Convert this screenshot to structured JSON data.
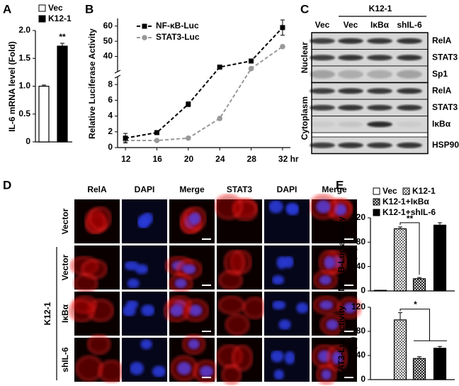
{
  "panel_labels": [
    "A",
    "B",
    "C",
    "D",
    "E"
  ],
  "chart_data": [
    {
      "type": "bar",
      "y_label": "IL-6 mRNA level (Fold)",
      "categories": [
        null
      ],
      "series": [
        {
          "name": "Vec",
          "color": "#ffffff",
          "values": [
            1.0
          ],
          "errors": [
            0.02
          ]
        },
        {
          "name": "K12-1",
          "color": "#000000",
          "values": [
            1.72
          ],
          "errors": [
            0.05
          ]
        }
      ],
      "annotations": [
        "**"
      ],
      "ylim": [
        0,
        2
      ],
      "yticks": [
        0,
        0.5,
        {
          "value": 1,
          "label": "1.0"
        },
        1.5,
        {
          "value": 2,
          "label": "2.0"
        }
      ]
    },
    {
      "type": "line",
      "y_label": "Relative Luciferase Activity",
      "x": [
        12,
        16,
        20,
        24,
        28,
        32
      ],
      "series": [
        {
          "name": "NF-κB-Luc",
          "color": "#000000",
          "marker": "square",
          "values": [
            1.2,
            1.9,
            5.5,
            33,
            37,
            59
          ],
          "errors": [
            0.6,
            0.2,
            0.3,
            0.3,
            0.3,
            5
          ]
        },
        {
          "name": "STAT3-Luc",
          "color": "#999999",
          "marker": "circle",
          "values": [
            0.9,
            0.9,
            1.2,
            3.7,
            32,
            46.5
          ]
        }
      ],
      "line_style": "dashed",
      "xlim": [
        11,
        33
      ],
      "xticks": [
        12,
        16,
        20,
        24,
        28,
        {
          "value": 32,
          "label": "32 hr"
        }
      ],
      "ylim": [
        0,
        65
      ],
      "ybreak": [
        9,
        30
      ],
      "yticks": [
        0,
        2,
        4,
        6,
        8,
        40,
        50,
        60
      ]
    },
    {
      "type": "bar",
      "y_label": [
        "NF-κB-Luc activity",
        "(%)"
      ],
      "categories": [
        null,
        null,
        null,
        null
      ],
      "series_names": [
        "Vec",
        "K12-1",
        "K12-1+IκBα",
        "K12-1+shIL-6"
      ],
      "fills": [
        "white",
        "dots",
        "crosshatch",
        "black"
      ],
      "values": [
        1,
        102,
        20,
        108
      ],
      "errors": [
        0,
        3,
        2,
        4
      ],
      "annotations": [
        "**"
      ],
      "ylim": [
        0,
        120
      ],
      "yticks": [
        0,
        40,
        80,
        120
      ]
    },
    {
      "type": "bar",
      "y_label": [
        "STAT3-Luc activity",
        "(%)"
      ],
      "categories": [
        null,
        null,
        null,
        null
      ],
      "fills": [
        "white",
        "dots",
        "crosshatch",
        "black"
      ],
      "values": [
        0,
        99,
        35,
        52
      ],
      "errors": [
        0,
        12,
        3,
        3
      ],
      "annotations": [
        "*"
      ],
      "ylim": [
        0,
        120
      ],
      "yticks": [
        0,
        40,
        80,
        120
      ]
    }
  ],
  "blot": {
    "group_label": "K12-1",
    "lanes": [
      "Vec",
      "Vec",
      "IκBα",
      "shIL-6"
    ],
    "sections": [
      {
        "label": "Nuclear",
        "rows": [
          "RelA",
          "STAT3",
          "Sp1"
        ]
      },
      {
        "label": "Cytoplasm",
        "rows": [
          "RelA",
          "STAT3",
          "IκBα",
          "HSP90"
        ]
      }
    ]
  },
  "microscopy": {
    "columns": [
      "RelA",
      "DAPI",
      "Merge",
      "STAT3",
      "DAPI",
      "Merge"
    ],
    "column_colors": [
      "#e00000",
      "#1f2fbf",
      "#000000",
      "#e00000",
      "#1f2fbf",
      "#000000"
    ],
    "rows": [
      "Vector",
      "Vector",
      "IκBα",
      "shIL-6"
    ],
    "group_label": "K12-1"
  }
}
